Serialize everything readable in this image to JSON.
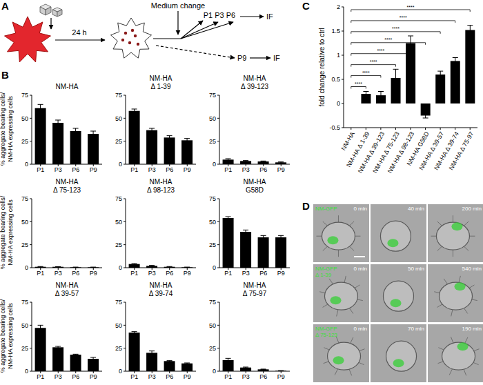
{
  "panel_labels": [
    "A",
    "B",
    "C",
    "D"
  ],
  "diagram": {
    "time": "24 h",
    "medium": "Medium change",
    "early_passages": "P1 P3 P6",
    "late_passage": "P9",
    "readouts": [
      "IF",
      "IF"
    ]
  },
  "chart_data": [
    {
      "type": "bar",
      "title": "NM-HA",
      "categories": [
        "P1",
        "P3",
        "P6",
        "P9"
      ],
      "values": [
        61,
        45,
        36,
        33
      ],
      "errors": [
        4,
        3,
        3,
        3
      ],
      "color": "#000000",
      "ylim": [
        0,
        75
      ],
      "yticks": [
        0,
        25,
        50,
        75
      ],
      "y_label": "% aggregate bearing cells/\nNM-HA expressing cells"
    },
    {
      "type": "bar",
      "title": "NM-HA\nΔ 1-39",
      "categories": [
        "P1",
        "P3",
        "P6",
        "P9"
      ],
      "values": [
        58,
        37,
        29,
        26
      ],
      "errors": [
        2,
        2,
        2,
        2
      ],
      "color": "#000000",
      "ylim": [
        0,
        75
      ],
      "yticks": [
        0,
        25,
        50,
        75
      ]
    },
    {
      "type": "bar",
      "title": "NM-HA\nΔ 39-123",
      "categories": [
        "P1",
        "P3",
        "P6",
        "P9"
      ],
      "values": [
        5,
        3.5,
        3,
        2
      ],
      "errors": [
        1,
        0.5,
        0.5,
        0.5
      ],
      "color": "#000000",
      "ylim": [
        0,
        75
      ],
      "yticks": [
        0,
        25,
        50,
        75
      ]
    },
    {
      "type": "bar",
      "title": "NM-HA\nΔ 75-123",
      "categories": [
        "P1",
        "P3",
        "P6",
        "P9"
      ],
      "values": [
        1,
        1,
        0.5,
        0.5
      ],
      "errors": [
        0.3,
        0.2,
        0.2,
        0.2
      ],
      "color": "#000000",
      "ylim": [
        0,
        75
      ],
      "yticks": [
        0,
        25,
        50,
        75
      ],
      "y_label": "% aggregate bearing cells/\nNM-HA expressing cells"
    },
    {
      "type": "bar",
      "title": "NM-HA\nΔ 98-123",
      "categories": [
        "P1",
        "P3",
        "P6",
        "P9"
      ],
      "values": [
        4,
        2,
        1,
        0.5
      ],
      "errors": [
        0.5,
        0.5,
        0.3,
        0.2
      ],
      "color": "#000000",
      "ylim": [
        0,
        75
      ],
      "yticks": [
        0,
        25,
        50,
        75
      ]
    },
    {
      "type": "bar",
      "title": "NM-HA\nG58D",
      "categories": [
        "P1",
        "P3",
        "P6",
        "P9"
      ],
      "values": [
        54,
        39,
        33,
        33
      ],
      "errors": [
        1.5,
        2,
        2,
        2
      ],
      "color": "#000000",
      "ylim": [
        0,
        75
      ],
      "yticks": [
        0,
        25,
        50,
        75
      ]
    },
    {
      "type": "bar",
      "title": "NM-HA\nΔ 39-57",
      "categories": [
        "P1",
        "P3",
        "P6",
        "P9"
      ],
      "values": [
        47,
        26,
        18,
        13.5
      ],
      "errors": [
        3,
        1,
        0.5,
        1.5
      ],
      "color": "#000000",
      "ylim": [
        0,
        75
      ],
      "yticks": [
        0,
        25,
        50,
        75
      ],
      "y_label": "% aggregate bearing cells/\nNM-HA expressing cells"
    },
    {
      "type": "bar",
      "title": "NM-HA\nΔ 39-74",
      "categories": [
        "P1",
        "P3",
        "P6",
        "P9"
      ],
      "values": [
        42,
        20,
        11,
        8.5
      ],
      "errors": [
        1,
        2,
        0.5,
        0.5
      ],
      "color": "#000000",
      "ylim": [
        0,
        75
      ],
      "yticks": [
        0,
        25,
        50,
        75
      ]
    },
    {
      "type": "bar",
      "title": "NM-HA\nΔ 75-97",
      "categories": [
        "P1",
        "P3",
        "P6",
        "P9"
      ],
      "values": [
        12,
        4,
        2,
        0.5
      ],
      "errors": [
        2,
        0.5,
        0.3,
        0.2
      ],
      "color": "#000000",
      "ylim": [
        0,
        75
      ],
      "yticks": [
        0,
        25,
        50,
        75
      ]
    },
    {
      "type": "bar",
      "categories": [
        "NM-HA",
        "NM-HA Δ 1-39",
        "NM-HA Δ 39-123",
        "NM-HA Δ 75-123",
        "NM-HA Δ 98-123",
        "NM-HA G58D",
        "NM-HA Δ 39-57",
        "NM-HA Δ 39-74",
        "NM-HA Δ 75-97"
      ],
      "values": [
        0,
        0.2,
        0.17,
        0.53,
        1.25,
        -0.25,
        0.6,
        0.88,
        1.52
      ],
      "errors": [
        null,
        0.05,
        0.08,
        0.18,
        0.15,
        0.05,
        0.07,
        0.07,
        0.1
      ],
      "color": "#000000",
      "ylim": [
        -0.5,
        2
      ],
      "yticks": [
        -0.5,
        0,
        0.5,
        1,
        1.5,
        2
      ],
      "y_label": "fold change relative to ctrl",
      "annotations": [
        {
          "from": "NM-HA",
          "to": "NM-HA Δ 1-39",
          "text": "****"
        },
        {
          "from": "NM-HA",
          "to": "NM-HA Δ 39-123",
          "text": "****"
        },
        {
          "from": "NM-HA",
          "to": "NM-HA Δ 75-123",
          "text": "****"
        },
        {
          "from": "NM-HA",
          "to": "NM-HA Δ 98-123",
          "text": "****"
        },
        {
          "from": "NM-HA",
          "to": "NM-HA G58D",
          "text": "****"
        },
        {
          "from": "NM-HA",
          "to": "NM-HA Δ 39-57",
          "text": "****"
        },
        {
          "from": "NM-HA",
          "to": "NM-HA Δ 39-74",
          "text": "****"
        },
        {
          "from": "NM-HA",
          "to": "NM-HA Δ 75-97",
          "text": "****"
        }
      ]
    }
  ],
  "images": {
    "rows": [
      {
        "label": "NM-GFP",
        "times": [
          "0 min",
          "40 min",
          "200 min"
        ]
      },
      {
        "label": "NM-GFP\nΔ 1-39",
        "times": [
          "0 min",
          "50 min",
          "540 min"
        ]
      },
      {
        "label": "NM-GFP\nΔ 75-123",
        "times": [
          "0 min",
          "70 min",
          "190 min"
        ]
      }
    ]
  }
}
